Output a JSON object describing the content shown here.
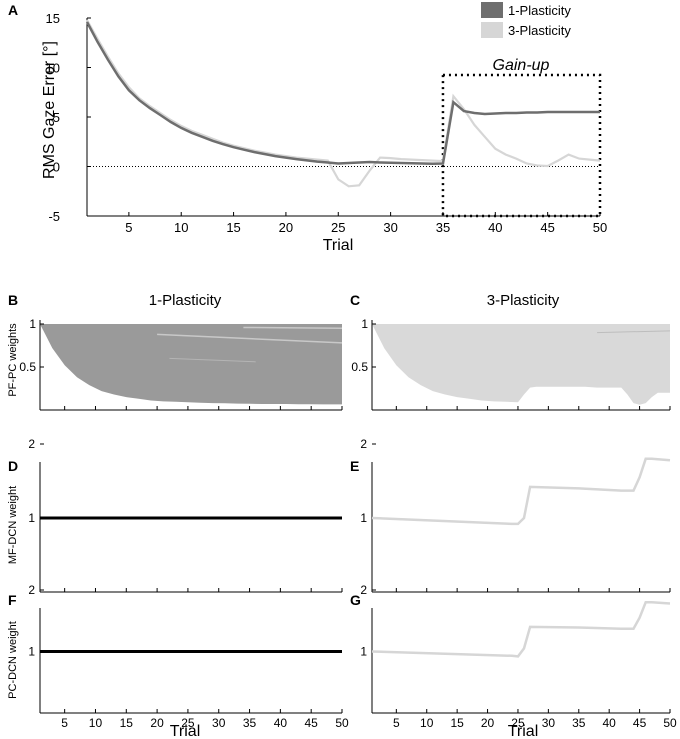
{
  "colors": {
    "one_plasticity": "#6e6e6e",
    "three_plasticity": "#d6d6d6",
    "pf_dark_fill": "#9a9a9a",
    "pf_light_fill": "#d9d9d9",
    "constant_line": "#000000"
  },
  "chart_data": [
    {
      "panel": "A",
      "type": "line",
      "title": "",
      "xlabel": "Trial",
      "ylabel": "RMS Gaze Error [°]",
      "xlim": [
        1,
        50
      ],
      "ylim": [
        -5,
        15
      ],
      "xticks": [
        5,
        10,
        15,
        20,
        25,
        30,
        35,
        40,
        45,
        50
      ],
      "yticks": [
        -5,
        0,
        5,
        10,
        15
      ],
      "legend": [
        "1-Plasticity",
        "3-Plasticity"
      ],
      "legend_position": "top-right",
      "annotation": "Gain-up",
      "annotation_xrange": [
        35,
        50
      ],
      "x": [
        1,
        2,
        3,
        4,
        5,
        6,
        7,
        8,
        9,
        10,
        11,
        12,
        13,
        14,
        15,
        16,
        17,
        18,
        19,
        20,
        21,
        22,
        23,
        24,
        25,
        26,
        27,
        28,
        29,
        30,
        31,
        32,
        33,
        34,
        35,
        36,
        37,
        38,
        39,
        40,
        41,
        42,
        43,
        44,
        45,
        46,
        47,
        48,
        49,
        50
      ],
      "series": [
        {
          "name": "1-Plasticity",
          "values": [
            14.6,
            12.6,
            10.8,
            9.1,
            7.7,
            6.7,
            5.9,
            5.2,
            4.5,
            3.9,
            3.4,
            3.0,
            2.6,
            2.25,
            1.95,
            1.7,
            1.45,
            1.25,
            1.05,
            0.9,
            0.75,
            0.62,
            0.5,
            0.4,
            0.3,
            0.35,
            0.4,
            0.45,
            0.4,
            0.38,
            0.35,
            0.32,
            0.3,
            0.28,
            0.3,
            6.5,
            5.6,
            5.4,
            5.3,
            5.35,
            5.4,
            5.4,
            5.45,
            5.45,
            5.5,
            5.5,
            5.5,
            5.5,
            5.5,
            5.5
          ]
        },
        {
          "name": "3-Plasticity",
          "values": [
            14.8,
            12.9,
            11.1,
            9.4,
            8.0,
            6.9,
            6.1,
            5.4,
            4.7,
            4.1,
            3.6,
            3.2,
            2.8,
            2.4,
            2.1,
            1.85,
            1.6,
            1.4,
            1.2,
            1.05,
            0.9,
            0.8,
            0.7,
            0.6,
            -1.3,
            -2.0,
            -1.9,
            -0.4,
            0.9,
            0.85,
            0.75,
            0.7,
            0.65,
            0.6,
            0.55,
            7.1,
            5.8,
            4.2,
            3.0,
            1.8,
            1.2,
            0.8,
            0.3,
            0.1,
            0.05,
            0.6,
            1.2,
            0.8,
            0.7,
            0.6
          ]
        }
      ]
    },
    {
      "panel": "B",
      "type": "area",
      "title": "1-Plasticity",
      "ylabel": "PF-PC weights",
      "xlim": [
        1,
        50
      ],
      "ylim": [
        0,
        1
      ],
      "yticks": [
        "0.5",
        "1"
      ],
      "upper_bound": 1.0,
      "lower_envelope_x": [
        1,
        3,
        5,
        7,
        9,
        11,
        13,
        15,
        17,
        19,
        21,
        23,
        25,
        27,
        29,
        31,
        33,
        35,
        37,
        39,
        41,
        43,
        45,
        47,
        49,
        50
      ],
      "lower_envelope_y": [
        1.0,
        0.72,
        0.52,
        0.38,
        0.29,
        0.22,
        0.18,
        0.15,
        0.13,
        0.11,
        0.1,
        0.095,
        0.09,
        0.085,
        0.08,
        0.078,
        0.075,
        0.072,
        0.07,
        0.07,
        0.07,
        0.068,
        0.066,
        0.065,
        0.065,
        0.065
      ]
    },
    {
      "panel": "C",
      "type": "area",
      "title": "3-Plasticity",
      "ylabel": "",
      "xlim": [
        1,
        50
      ],
      "ylim": [
        0,
        1
      ],
      "yticks": [
        "0.5",
        "1"
      ],
      "upper_bound": 1.0,
      "lower_envelope_x": [
        1,
        3,
        5,
        7,
        9,
        11,
        13,
        15,
        17,
        19,
        21,
        23,
        25,
        26,
        27,
        28,
        30,
        32,
        34,
        36,
        38,
        40,
        42,
        43,
        44,
        45,
        46,
        47,
        48,
        50
      ],
      "lower_envelope_y": [
        1.0,
        0.72,
        0.52,
        0.38,
        0.29,
        0.22,
        0.18,
        0.15,
        0.13,
        0.11,
        0.1,
        0.095,
        0.09,
        0.18,
        0.26,
        0.27,
        0.27,
        0.27,
        0.27,
        0.27,
        0.26,
        0.26,
        0.26,
        0.18,
        0.08,
        0.06,
        0.08,
        0.15,
        0.2,
        0.2
      ]
    },
    {
      "panel": "D",
      "type": "line",
      "ylabel": "MF-DCN weight",
      "xlim": [
        1,
        50
      ],
      "ylim": [
        0,
        2
      ],
      "yticks": [
        1,
        2
      ],
      "series": [
        {
          "name": "1-Plasticity",
          "x": [
            1,
            50
          ],
          "values": [
            1,
            1
          ]
        }
      ]
    },
    {
      "panel": "E",
      "type": "line",
      "ylabel": "",
      "xlim": [
        1,
        50
      ],
      "ylim": [
        0,
        2
      ],
      "yticks": [
        1,
        2
      ],
      "series": [
        {
          "name": "3-Plasticity",
          "x": [
            1,
            24,
            25,
            26,
            27,
            35,
            42,
            44,
            45,
            46,
            47,
            50
          ],
          "values": [
            1.0,
            0.92,
            0.92,
            1.0,
            1.42,
            1.4,
            1.37,
            1.37,
            1.55,
            1.8,
            1.8,
            1.78
          ]
        }
      ]
    },
    {
      "panel": "F",
      "type": "line",
      "ylabel": "PC-DCN weight",
      "xlabel": "Trial",
      "xlim": [
        1,
        50
      ],
      "ylim": [
        0,
        2
      ],
      "yticks": [
        1,
        2
      ],
      "xticks": [
        5,
        10,
        15,
        20,
        25,
        30,
        35,
        40,
        45,
        50
      ],
      "series": [
        {
          "name": "1-Plasticity",
          "x": [
            1,
            50
          ],
          "values": [
            1,
            1
          ]
        }
      ]
    },
    {
      "panel": "G",
      "type": "line",
      "ylabel": "",
      "xlabel": "Trial",
      "xlim": [
        1,
        50
      ],
      "ylim": [
        0,
        2
      ],
      "yticks": [
        1,
        2
      ],
      "xticks": [
        5,
        10,
        15,
        20,
        25,
        30,
        35,
        40,
        45,
        50
      ],
      "series": [
        {
          "name": "3-Plasticity",
          "x": [
            1,
            24,
            25,
            26,
            27,
            35,
            42,
            44,
            45,
            46,
            47,
            50
          ],
          "values": [
            1.0,
            0.93,
            0.92,
            1.05,
            1.4,
            1.39,
            1.37,
            1.37,
            1.55,
            1.8,
            1.8,
            1.78
          ]
        }
      ]
    }
  ]
}
